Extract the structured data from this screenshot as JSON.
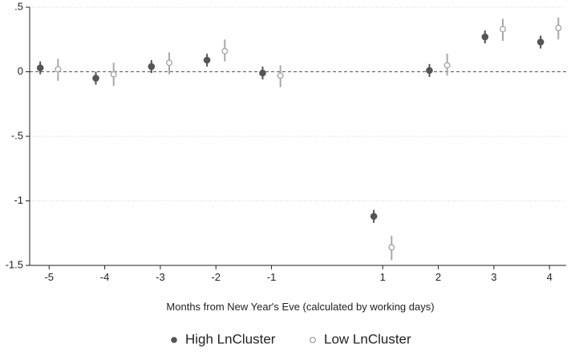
{
  "chart_data": {
    "type": "scatter",
    "title": "",
    "xlabel": "Months from New Year's Eve (calculated by working days)",
    "ylabel": "",
    "xlim": [
      -5.35,
      4.3
    ],
    "ylim": [
      -1.5,
      0.5
    ],
    "x_ticks": [
      -5,
      -4,
      -3,
      -2,
      -1,
      1,
      2,
      3,
      4
    ],
    "x_tick_labels": [
      "-5",
      "-4",
      "-3",
      "-2",
      "-1",
      "1",
      "2",
      "3",
      "4"
    ],
    "y_ticks": [
      0.5,
      0,
      -0.5,
      -1,
      -1.5
    ],
    "y_tick_labels": [
      ".5",
      "0",
      "-.5",
      "-1",
      "-1.5"
    ],
    "grid": "horizontal dotted",
    "reference_line": {
      "y": 0,
      "style": "dashed"
    },
    "legend_position": "bottom",
    "series": [
      {
        "name": "High LnCluster",
        "marker": "filled-circle",
        "color": "#555555",
        "points": [
          {
            "x": -5,
            "y": 0.03,
            "ci": [
              -0.02,
              0.08
            ]
          },
          {
            "x": -4,
            "y": -0.05,
            "ci": [
              -0.1,
              0.0
            ]
          },
          {
            "x": -3,
            "y": 0.04,
            "ci": [
              -0.01,
              0.09
            ]
          },
          {
            "x": -2,
            "y": 0.09,
            "ci": [
              0.04,
              0.14
            ]
          },
          {
            "x": -1,
            "y": -0.01,
            "ci": [
              -0.06,
              0.04
            ]
          },
          {
            "x": 1,
            "y": -1.12,
            "ci": [
              -1.17,
              -1.07
            ]
          },
          {
            "x": 2,
            "y": 0.01,
            "ci": [
              -0.04,
              0.06
            ]
          },
          {
            "x": 3,
            "y": 0.27,
            "ci": [
              0.22,
              0.32
            ]
          },
          {
            "x": 4,
            "y": 0.23,
            "ci": [
              0.18,
              0.28
            ]
          }
        ]
      },
      {
        "name": "Low LnCluster",
        "marker": "hollow-circle",
        "color": "#a8a8a8",
        "points": [
          {
            "x": -5,
            "y": 0.02,
            "ci": [
              -0.07,
              0.1
            ]
          },
          {
            "x": -4,
            "y": -0.02,
            "ci": [
              -0.11,
              0.07
            ]
          },
          {
            "x": -3,
            "y": 0.07,
            "ci": [
              -0.02,
              0.15
            ]
          },
          {
            "x": -2,
            "y": 0.16,
            "ci": [
              0.08,
              0.25
            ]
          },
          {
            "x": -1,
            "y": -0.03,
            "ci": [
              -0.12,
              0.05
            ]
          },
          {
            "x": 1,
            "y": -1.36,
            "ci": [
              -1.46,
              -1.27
            ]
          },
          {
            "x": 2,
            "y": 0.05,
            "ci": [
              -0.03,
              0.14
            ]
          },
          {
            "x": 3,
            "y": 0.33,
            "ci": [
              0.24,
              0.41
            ]
          },
          {
            "x": 4,
            "y": 0.34,
            "ci": [
              0.25,
              0.42
            ]
          }
        ]
      }
    ]
  }
}
